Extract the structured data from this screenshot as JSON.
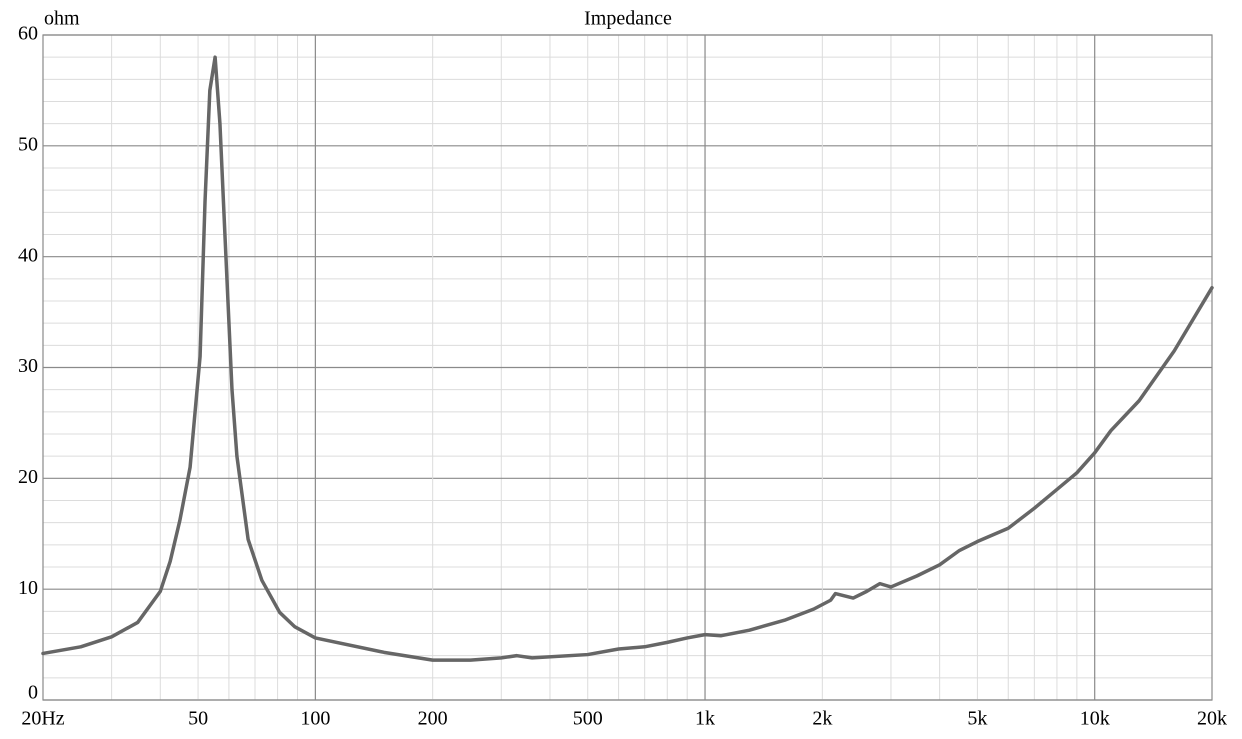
{
  "chart_data": {
    "type": "line",
    "title": "Impedance",
    "y_label": "ohm",
    "color": "#666666",
    "log_x": true,
    "grid": true,
    "x": [
      20,
      25,
      30,
      35,
      40,
      42.4,
      44.9,
      47.7,
      50.6,
      52.1,
      53.6,
      55.3,
      56.9,
      58.6,
      61.1,
      62.9,
      67.2,
      72.9,
      81,
      88.6,
      100,
      150,
      200,
      250,
      300,
      329,
      360,
      500,
      600,
      700,
      800,
      900,
      1000,
      1100,
      1300,
      1600,
      1900,
      2100,
      2160,
      2400,
      2600,
      2810,
      3000,
      3500,
      4000,
      4500,
      5000,
      6000,
      7000,
      8000,
      9000,
      10000,
      11000,
      13000,
      16000,
      20000
    ],
    "values": [
      4.2,
      4.8,
      5.7,
      7.0,
      9.8,
      12.5,
      16.2,
      21,
      31,
      45,
      55,
      58,
      52,
      42,
      28,
      22,
      14.5,
      10.8,
      7.9,
      6.6,
      5.6,
      4.3,
      3.6,
      3.6,
      3.8,
      4.0,
      3.8,
      4.1,
      4.6,
      4.8,
      5.2,
      5.6,
      5.9,
      5.8,
      6.3,
      7.2,
      8.2,
      9.0,
      9.6,
      9.2,
      9.8,
      10.5,
      10.2,
      11.2,
      12.2,
      13.5,
      14.3,
      15.5,
      17.3,
      19.0,
      20.5,
      22.3,
      24.3,
      27.0,
      31.5,
      37.2
    ],
    "xlim": [
      20,
      20000
    ],
    "ylim": [
      0,
      60
    ],
    "xticks": [
      {
        "value": 20,
        "label": "20Hz"
      },
      50,
      100,
      200,
      500,
      {
        "value": 1000,
        "label": "1k"
      },
      {
        "value": 2000,
        "label": "2k"
      },
      {
        "value": 5000,
        "label": "5k"
      },
      {
        "value": 10000,
        "label": "10k"
      },
      {
        "value": 20000,
        "label": "20k"
      }
    ],
    "yticks": [
      0,
      10,
      20,
      30,
      40,
      50,
      60
    ],
    "x_minor_grid": [
      30,
      40,
      60,
      70,
      80,
      90,
      300,
      400,
      600,
      700,
      800,
      900,
      3000,
      4000,
      6000,
      7000,
      8000,
      9000
    ],
    "y_minor_grid": [
      2,
      4,
      6,
      8,
      12,
      14,
      16,
      18,
      22,
      24,
      26,
      28,
      32,
      34,
      36,
      38,
      42,
      44,
      46,
      48,
      52,
      54,
      56,
      58
    ]
  }
}
